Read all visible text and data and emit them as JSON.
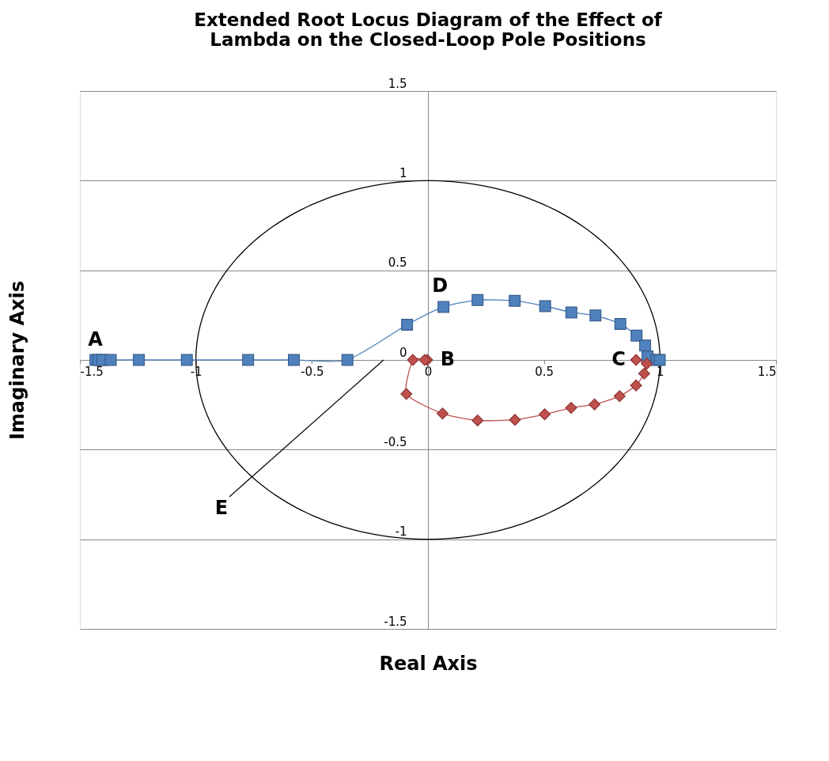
{
  "chart_data": {
    "type": "line",
    "title": [
      "Extended Root Locus Diagram of the Effect of",
      "Lambda on the Closed-Loop  Pole Positions"
    ],
    "xlabel": "Real Axis",
    "ylabel": "Imaginary Axis",
    "xlim": [
      -1.5,
      1.5
    ],
    "ylim": [
      -1.5,
      1.5
    ],
    "xticks": [
      -1.5,
      -1,
      -0.5,
      0,
      0.5,
      1,
      1.5
    ],
    "yticks": [
      -1.5,
      -1,
      -0.5,
      0,
      0.5,
      1,
      1.5
    ],
    "grid": "y",
    "series": [
      {
        "color": "#4f81bd",
        "marker": "square",
        "x": [
          -1.433,
          -1.42,
          -1.403,
          -1.367,
          -1.246,
          -1.039,
          -0.775,
          -0.578,
          -0.347,
          -0.09,
          0.067,
          0.214,
          0.374,
          0.505,
          0.618,
          0.722,
          0.829,
          0.899,
          0.936,
          0.946,
          0.985,
          0.999
        ],
        "values": [
          0,
          0,
          0,
          0,
          0,
          0,
          0,
          0,
          0,
          0.196,
          0.296,
          0.334,
          0.33,
          0.3,
          0.265,
          0.248,
          0.201,
          0.136,
          0.08,
          0.02,
          0,
          0
        ]
      },
      {
        "color": "#c0504d",
        "marker": "diamond",
        "x": [
          -0.003,
          -0.014,
          -0.065,
          -0.093,
          0.063,
          0.214,
          0.375,
          0.503,
          0.617,
          0.718,
          0.826,
          0.897,
          0.932,
          0.943,
          0.897
        ],
        "values": [
          0,
          0,
          0,
          -0.19,
          -0.299,
          -0.337,
          -0.334,
          -0.303,
          -0.267,
          -0.248,
          -0.202,
          -0.142,
          -0.076,
          -0.021,
          0
        ]
      }
    ],
    "annotations": [
      {
        "text": "A",
        "x": -1.433,
        "y": 0
      },
      {
        "text": "B",
        "x": 0,
        "y": 0
      },
      {
        "text": "C",
        "x": 0.897,
        "y": 0
      },
      {
        "text": "D",
        "x": 0.067,
        "y": 0.296
      },
      "E"
    ]
  }
}
